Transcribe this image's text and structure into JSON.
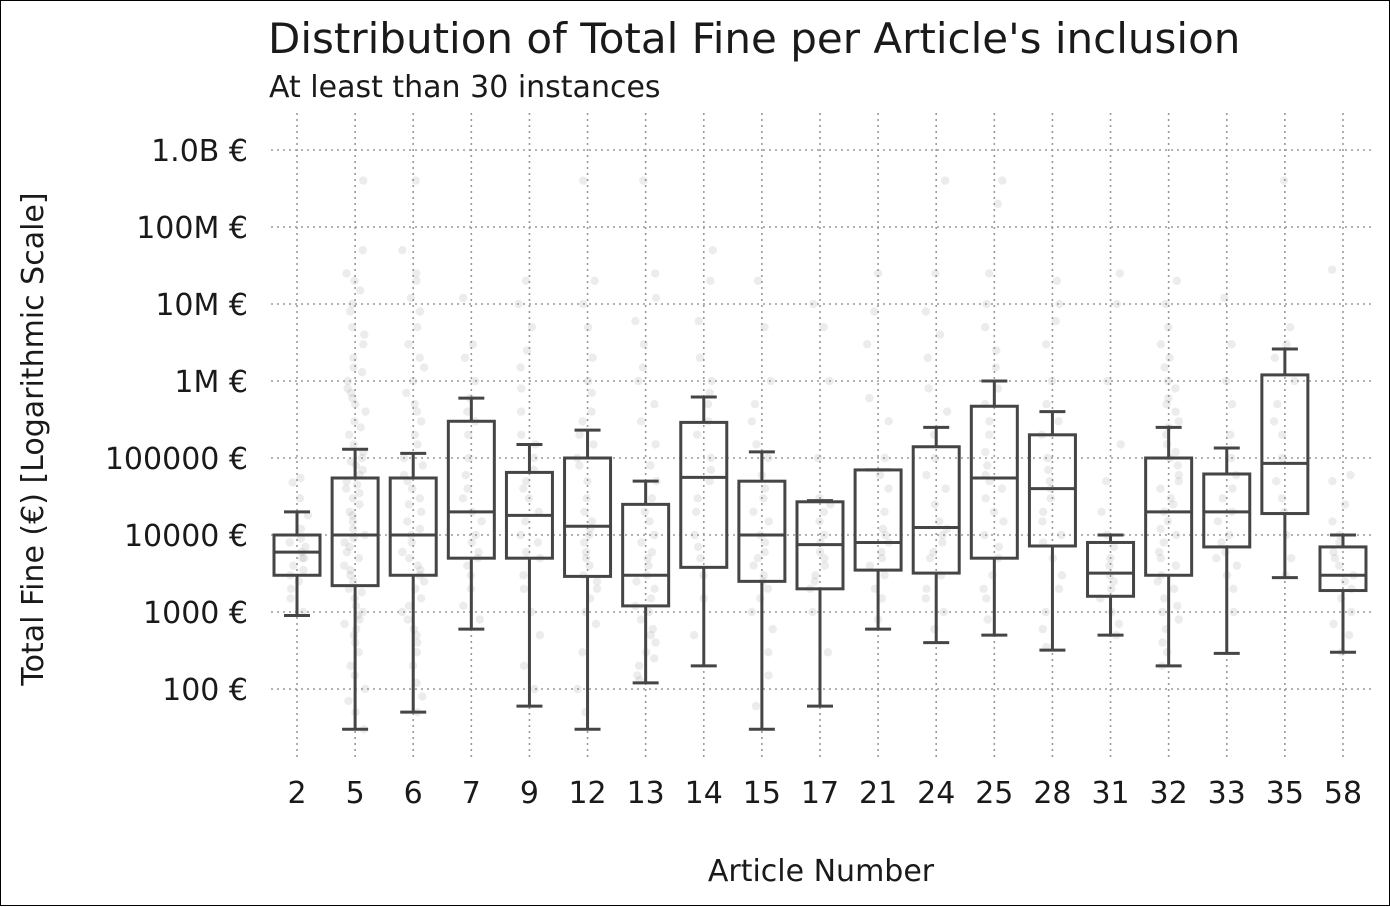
{
  "chart_data": {
    "type": "box",
    "title": "Distribution of Total Fine per Article's inclusion",
    "subtitle": "At least than 30 instances",
    "xlabel": "Article Number",
    "ylabel": "Total Fine (€) [Logarithmic Scale]",
    "yscale": "log",
    "ylim": [
      10,
      2000000000
    ],
    "grid": true,
    "yticks": [
      {
        "value": 100,
        "label": "100 €"
      },
      {
        "value": 1000,
        "label": "1000 €"
      },
      {
        "value": 10000,
        "label": "10000 €"
      },
      {
        "value": 100000,
        "label": "100000 €"
      },
      {
        "value": 1000000,
        "label": "1M €"
      },
      {
        "value": 10000000,
        "label": "10M €"
      },
      {
        "value": 100000000,
        "label": "100M €"
      },
      {
        "value": 1000000000,
        "label": "1.0B €"
      }
    ],
    "categories": [
      "2",
      "5",
      "6",
      "7",
      "9",
      "12",
      "13",
      "14",
      "15",
      "17",
      "21",
      "24",
      "25",
      "28",
      "31",
      "32",
      "33",
      "35",
      "58"
    ],
    "boxes": [
      {
        "category": "2",
        "whisker_low": 900,
        "q1": 3000,
        "median": 6000,
        "q3": 10000,
        "whisker_high": 20000
      },
      {
        "category": "5",
        "whisker_low": 30,
        "q1": 2200,
        "median": 10000,
        "q3": 55000,
        "whisker_high": 130000
      },
      {
        "category": "6",
        "whisker_low": 50,
        "q1": 3000,
        "median": 10000,
        "q3": 55000,
        "whisker_high": 115000
      },
      {
        "category": "7",
        "whisker_low": 600,
        "q1": 5000,
        "median": 20000,
        "q3": 300000,
        "whisker_high": 600000
      },
      {
        "category": "9",
        "whisker_low": 60,
        "q1": 5000,
        "median": 18000,
        "q3": 65000,
        "whisker_high": 150000
      },
      {
        "category": "12",
        "whisker_low": 30,
        "q1": 2900,
        "median": 13000,
        "q3": 100000,
        "whisker_high": 230000
      },
      {
        "category": "13",
        "whisker_low": 120,
        "q1": 1200,
        "median": 3000,
        "q3": 25000,
        "whisker_high": 50000
      },
      {
        "category": "14",
        "whisker_low": 200,
        "q1": 3800,
        "median": 56000,
        "q3": 290000,
        "whisker_high": 620000
      },
      {
        "category": "15",
        "whisker_low": 30,
        "q1": 2500,
        "median": 10000,
        "q3": 50000,
        "whisker_high": 120000
      },
      {
        "category": "17",
        "whisker_low": 60,
        "q1": 2000,
        "median": 7500,
        "q3": 27000,
        "whisker_high": 28000
      },
      {
        "category": "21",
        "whisker_low": 600,
        "q1": 3500,
        "median": 8000,
        "q3": 70000,
        "whisker_high": 70000
      },
      {
        "category": "24",
        "whisker_low": 400,
        "q1": 3200,
        "median": 12500,
        "q3": 140000,
        "whisker_high": 250000
      },
      {
        "category": "25",
        "whisker_low": 500,
        "q1": 5000,
        "median": 55000,
        "q3": 470000,
        "whisker_high": 1000000
      },
      {
        "category": "28",
        "whisker_low": 320,
        "q1": 7200,
        "median": 40000,
        "q3": 200000,
        "whisker_high": 400000
      },
      {
        "category": "31",
        "whisker_low": 500,
        "q1": 1600,
        "median": 3200,
        "q3": 8000,
        "whisker_high": 10000
      },
      {
        "category": "32",
        "whisker_low": 200,
        "q1": 3000,
        "median": 20000,
        "q3": 100000,
        "whisker_high": 250000
      },
      {
        "category": "33",
        "whisker_low": 290,
        "q1": 7000,
        "median": 20000,
        "q3": 62000,
        "whisker_high": 135000
      },
      {
        "category": "35",
        "whisker_low": 2800,
        "q1": 19000,
        "median": 85000,
        "q3": 1200000,
        "whisker_high": 2600000
      },
      {
        "category": "58",
        "whisker_low": 300,
        "q1": 1900,
        "median": 3000,
        "q3": 7000,
        "whisker_high": 10000
      }
    ],
    "points": [
      {
        "category": "2",
        "values": [
          55000,
          48000,
          30000,
          18000,
          12000,
          9000,
          8000,
          7000,
          6000,
          5000,
          5000,
          4000,
          3500,
          3000,
          2500,
          2000,
          1500,
          1000
        ]
      },
      {
        "category": "5",
        "values": [
          400000000,
          50000000,
          25000000,
          20000000,
          15000000,
          10000000,
          8000000,
          5000000,
          4000000,
          3000000,
          2000000,
          1500000,
          1300000,
          1000000,
          800000,
          700000,
          600000,
          500000,
          400000,
          300000,
          250000,
          200000,
          150000,
          120000,
          100000,
          90000,
          80000,
          70000,
          60000,
          50000,
          45000,
          40000,
          35000,
          30000,
          25000,
          20000,
          18000,
          15000,
          12000,
          10000,
          9000,
          8000,
          7000,
          6000,
          5000,
          4000,
          3500,
          3000,
          2500,
          2000,
          1800,
          1500,
          1200,
          1000,
          900,
          800,
          700,
          600,
          500,
          400,
          300,
          200,
          150,
          100,
          70,
          50,
          30
        ]
      },
      {
        "category": "6",
        "values": [
          400000000,
          50000000,
          25000000,
          20000000,
          12000000,
          8000000,
          5000000,
          3000000,
          2000000,
          1500000,
          1000000,
          700000,
          500000,
          400000,
          300000,
          200000,
          150000,
          100000,
          80000,
          60000,
          50000,
          40000,
          30000,
          25000,
          20000,
          15000,
          12000,
          10000,
          8000,
          6000,
          5000,
          4000,
          3500,
          3000,
          2500,
          2000,
          1500,
          1200,
          1000,
          800,
          600,
          500,
          400,
          300,
          200,
          120,
          80,
          50
        ]
      },
      {
        "category": "7",
        "values": [
          12000000,
          3000000,
          2000000,
          1000000,
          600000,
          400000,
          300000,
          200000,
          100000,
          60000,
          40000,
          30000,
          20000,
          15000,
          10000,
          8000,
          6000,
          5000,
          4000,
          3000,
          2000,
          1200,
          800
        ]
      },
      {
        "category": "9",
        "values": [
          20000000,
          10000000,
          5000000,
          2500000,
          1500000,
          800000,
          400000,
          200000,
          150000,
          100000,
          70000,
          50000,
          40000,
          30000,
          20000,
          15000,
          10000,
          8000,
          6000,
          5000,
          3000,
          2000,
          1000,
          500,
          200,
          100
        ]
      },
      {
        "category": "12",
        "values": [
          400000000,
          20000000,
          10000000,
          5000000,
          2000000,
          1000000,
          700000,
          400000,
          300000,
          200000,
          150000,
          100000,
          80000,
          50000,
          30000,
          20000,
          15000,
          12000,
          10000,
          8000,
          6000,
          5000,
          4000,
          3000,
          2500,
          2000,
          1500,
          1000,
          700,
          300,
          100,
          50
        ]
      },
      {
        "category": "13",
        "values": [
          400000000,
          25000000,
          12000000,
          6000000,
          3000000,
          1500000,
          1000000,
          500000,
          300000,
          150000,
          80000,
          50000,
          30000,
          20000,
          15000,
          10000,
          8000,
          6000,
          5000,
          4000,
          3000,
          2500,
          2000,
          1500,
          1200,
          1000,
          800,
          600,
          500,
          400,
          300,
          250,
          200,
          150,
          130
        ]
      },
      {
        "category": "14",
        "values": [
          50000000,
          20000000,
          6000000,
          2000000,
          1000000,
          700000,
          500000,
          300000,
          200000,
          100000,
          70000,
          50000,
          30000,
          20000,
          10000,
          7000,
          5000,
          3000,
          1500,
          500
        ]
      },
      {
        "category": "15",
        "values": [
          20000000,
          5000000,
          1000000,
          500000,
          300000,
          150000,
          100000,
          60000,
          40000,
          30000,
          20000,
          15000,
          10000,
          8000,
          6000,
          5000,
          4000,
          3000,
          2500,
          2000,
          1500,
          1000,
          600,
          300,
          150,
          60
        ]
      },
      {
        "category": "17",
        "values": [
          10000000,
          5000000,
          1000000,
          100000,
          30000,
          25000,
          20000,
          15000,
          10000,
          8000,
          6000,
          5000,
          4000,
          3000,
          2500,
          2000,
          1000,
          300
        ]
      },
      {
        "category": "21",
        "values": [
          25000000,
          8000000,
          3000000,
          600000,
          300000,
          100000,
          60000,
          40000,
          20000,
          12000,
          10000,
          8000,
          6000,
          5000,
          4000,
          3000,
          2000,
          1500,
          800
        ]
      },
      {
        "category": "24",
        "values": [
          400000000,
          25000000,
          8000000,
          4000000,
          2000000,
          800000,
          400000,
          200000,
          100000,
          60000,
          40000,
          25000,
          15000,
          12000,
          10000,
          8000,
          6000,
          5000,
          3000,
          2000,
          1500,
          1000,
          600
        ]
      },
      {
        "category": "25",
        "values": [
          400000000,
          200000000,
          25000000,
          10000000,
          5000000,
          2500000,
          1500000,
          800000,
          500000,
          300000,
          200000,
          120000,
          80000,
          60000,
          50000,
          40000,
          30000,
          20000,
          15000,
          10000,
          7000,
          5000,
          3000,
          2000,
          1500,
          800
        ]
      },
      {
        "category": "28",
        "values": [
          20000000,
          10000000,
          6000000,
          3000000,
          1000000,
          500000,
          300000,
          200000,
          100000,
          70000,
          50000,
          40000,
          30000,
          20000,
          15000,
          10000,
          8000,
          5000,
          3000,
          2000,
          1000,
          600,
          350
        ]
      },
      {
        "category": "31",
        "values": [
          25000000,
          10000000,
          1000000,
          150000,
          50000,
          20000,
          10000,
          7000,
          5000,
          4000,
          3000,
          2500,
          2000,
          1500,
          1000,
          700,
          500
        ]
      },
      {
        "category": "32",
        "values": [
          20000000,
          10000000,
          5000000,
          3000000,
          2000000,
          1500000,
          1000000,
          800000,
          600000,
          500000,
          400000,
          300000,
          250000,
          200000,
          150000,
          120000,
          100000,
          80000,
          60000,
          50000,
          40000,
          30000,
          25000,
          20000,
          15000,
          12000,
          10000,
          8000,
          6000,
          5000,
          4000,
          3000,
          2500,
          2000,
          1500,
          1200,
          1000,
          800,
          600,
          400,
          300,
          200
        ]
      },
      {
        "category": "33",
        "values": [
          12000000,
          3000000,
          1000000,
          500000,
          200000,
          100000,
          60000,
          40000,
          30000,
          20000,
          15000,
          10000,
          8000,
          6000,
          5000,
          4000,
          3000,
          2000,
          1000
        ]
      },
      {
        "category": "35",
        "values": [
          400000000,
          5000000,
          3000000,
          2000000,
          1000000,
          500000,
          300000,
          200000,
          100000,
          50000,
          30000,
          20000,
          10000,
          5000,
          3000
        ]
      },
      {
        "category": "58",
        "values": [
          28000000,
          60000,
          50000,
          25000,
          15000,
          10000,
          8000,
          6000,
          5000,
          4000,
          3000,
          2500,
          2000,
          1500,
          1000,
          700,
          500,
          300
        ]
      }
    ]
  }
}
